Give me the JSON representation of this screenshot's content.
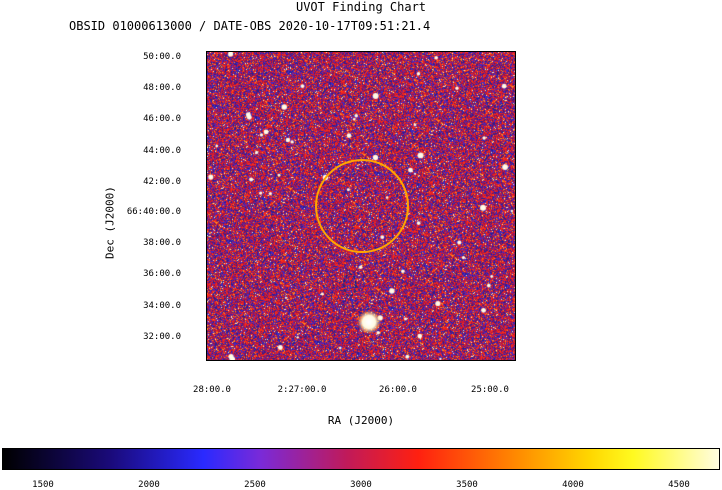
{
  "chart_data": {
    "type": "heatmap",
    "title": "UVOT Finding Chart",
    "subtitle": "OBSID 01000613000 / DATE-OBS 2020-10-17T09:51:21.4",
    "xlabel": "RA (J2000)",
    "ylabel": "Dec (J2000)",
    "x_ticks": [
      "28:00.0",
      "2:27:00.0",
      "26:00.0",
      "25:00.0"
    ],
    "y_ticks": [
      "50:00.0",
      "48:00.0",
      "46:00.0",
      "44:00.0",
      "42:00.0",
      "66:40:00.0",
      "38:00.0",
      "36:00.0",
      "34:00.0",
      "32:00.0"
    ],
    "colorbar_ticks": [
      "1500",
      "2000",
      "2500",
      "3000",
      "3500",
      "4000",
      "4500"
    ],
    "colorbar_colors": [
      "#000000",
      "#1a0a7a",
      "#2a2aff",
      "#7a2ad8",
      "#c01a5a",
      "#ff2010",
      "#ff8c00",
      "#ffd700",
      "#fffa20",
      "#fffde0"
    ],
    "source_region_color": "#ffa500",
    "background_region_color": "#1e2a80"
  }
}
